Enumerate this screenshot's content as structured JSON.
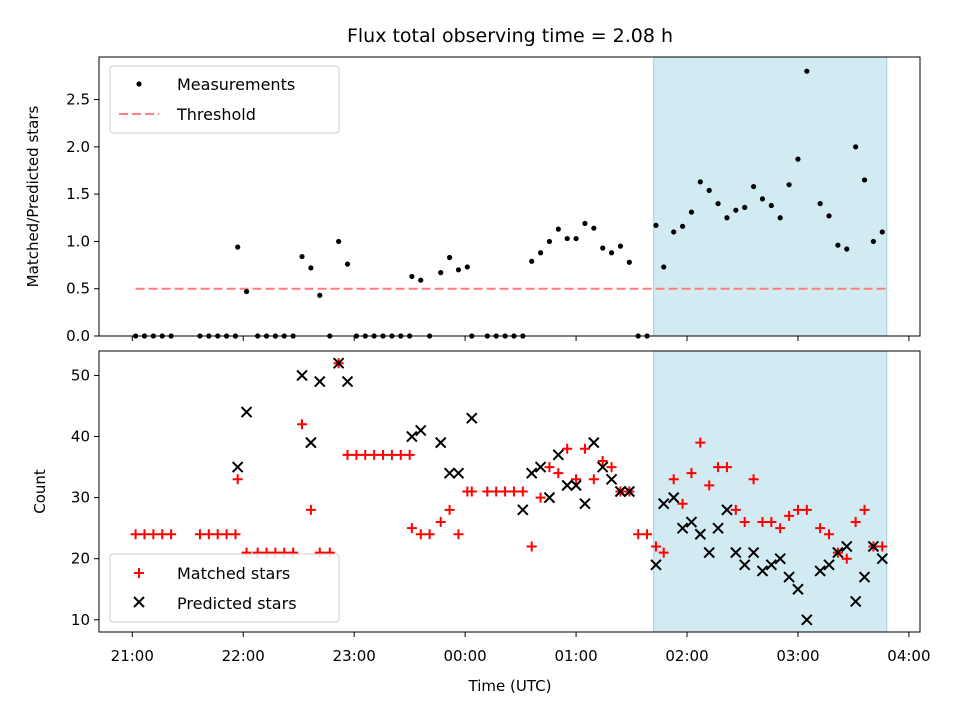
{
  "chart_data": [
    {
      "type": "scatter",
      "title": "Flux total observing time = 2.08 h",
      "xlabel": "",
      "ylabel": "Matched/Predicted stars",
      "xlim": [
        20.7,
        28.1
      ],
      "ylim": [
        0.0,
        2.95
      ],
      "yticks": [
        "0.0",
        "0.5",
        "1.0",
        "1.5",
        "2.0",
        "2.5"
      ],
      "shaded_interval": [
        25.7,
        27.8
      ],
      "shade_color": "#add8e6",
      "legend_position": "top-left",
      "series": [
        {
          "name": "Measurements",
          "marker": "dot",
          "color": "#000000",
          "x": [
            21.03,
            21.11,
            21.19,
            21.27,
            21.35,
            21.61,
            21.69,
            21.77,
            21.85,
            21.93,
            21.95,
            22.03,
            22.13,
            22.21,
            22.29,
            22.37,
            22.45,
            22.53,
            22.61,
            22.69,
            22.78,
            22.86,
            22.94,
            23.02,
            23.1,
            23.18,
            23.26,
            23.34,
            23.42,
            23.5,
            23.52,
            23.6,
            23.68,
            23.78,
            23.86,
            23.94,
            24.02,
            24.06,
            24.2,
            24.28,
            24.36,
            24.44,
            24.52,
            24.6,
            24.68,
            24.76,
            24.84,
            24.92,
            25.0,
            25.08,
            25.16,
            25.24,
            25.32,
            25.4,
            25.48,
            25.56,
            25.64,
            25.72,
            25.79,
            25.88,
            25.96,
            26.04,
            26.12,
            26.2,
            26.28,
            26.36,
            26.44,
            26.52,
            26.6,
            26.68,
            26.76,
            26.84,
            26.92,
            27.0,
            27.08,
            27.2,
            27.28,
            27.36,
            27.44,
            27.52,
            27.6,
            27.68,
            27.76
          ],
          "y": [
            0.0,
            0.0,
            0.0,
            0.0,
            0.0,
            0.0,
            0.0,
            0.0,
            0.0,
            0.0,
            0.94,
            0.47,
            0.0,
            0.0,
            0.0,
            0.0,
            0.0,
            0.84,
            0.72,
            0.43,
            0.0,
            1.0,
            0.76,
            0.0,
            0.0,
            0.0,
            0.0,
            0.0,
            0.0,
            0.0,
            0.63,
            0.59,
            0.0,
            0.67,
            0.83,
            0.7,
            0.73,
            0.0,
            0.0,
            0.0,
            0.0,
            0.0,
            0.0,
            0.79,
            0.88,
            1.0,
            1.13,
            1.03,
            1.03,
            1.19,
            1.14,
            0.93,
            0.88,
            0.95,
            0.78,
            0.0,
            0.0,
            1.17,
            0.73,
            1.1,
            1.16,
            1.31,
            1.63,
            1.54,
            1.4,
            1.25,
            1.33,
            1.36,
            1.58,
            1.45,
            1.38,
            1.25,
            1.6,
            1.87,
            2.8,
            1.4,
            1.27,
            0.96,
            0.92,
            2.0,
            1.65,
            1.0,
            1.1
          ]
        },
        {
          "name": "Threshold",
          "marker": "dashed-line",
          "color": "#ff7f7f",
          "x": [
            21.03,
            27.8
          ],
          "y": [
            0.5,
            0.5
          ]
        }
      ]
    },
    {
      "type": "scatter",
      "title": "",
      "xlabel": "Time (UTC)",
      "ylabel": "Count",
      "xlim": [
        20.7,
        28.1
      ],
      "ylim": [
        8,
        54
      ],
      "yticks": [
        "10",
        "20",
        "30",
        "40",
        "50"
      ],
      "xticks": [
        {
          "value": 21,
          "label": "21:00"
        },
        {
          "value": 22,
          "label": "22:00"
        },
        {
          "value": 23,
          "label": "23:00"
        },
        {
          "value": 24,
          "label": "00:00"
        },
        {
          "value": 25,
          "label": "01:00"
        },
        {
          "value": 26,
          "label": "02:00"
        },
        {
          "value": 27,
          "label": "03:00"
        },
        {
          "value": 28,
          "label": "04:00"
        }
      ],
      "shaded_interval": [
        25.7,
        27.8
      ],
      "shade_color": "#add8e6",
      "legend_position": "bottom-left",
      "series": [
        {
          "name": "Matched stars",
          "marker": "plus",
          "color": "#ff0000",
          "x": [
            21.03,
            21.11,
            21.19,
            21.27,
            21.35,
            21.61,
            21.69,
            21.77,
            21.85,
            21.93,
            21.95,
            22.03,
            22.13,
            22.21,
            22.29,
            22.37,
            22.45,
            22.53,
            22.61,
            22.69,
            22.78,
            22.86,
            22.94,
            23.02,
            23.1,
            23.18,
            23.26,
            23.34,
            23.42,
            23.5,
            23.52,
            23.6,
            23.68,
            23.78,
            23.86,
            23.94,
            24.02,
            24.06,
            24.2,
            24.28,
            24.36,
            24.44,
            24.52,
            24.6,
            24.68,
            24.76,
            24.84,
            24.92,
            25.0,
            25.08,
            25.16,
            25.24,
            25.32,
            25.4,
            25.48,
            25.56,
            25.64,
            25.72,
            25.79,
            25.88,
            25.96,
            26.04,
            26.12,
            26.2,
            26.28,
            26.36,
            26.44,
            26.52,
            26.6,
            26.68,
            26.76,
            26.84,
            26.92,
            27.0,
            27.08,
            27.2,
            27.28,
            27.36,
            27.44,
            27.52,
            27.6,
            27.68,
            27.76
          ],
          "y": [
            24,
            24,
            24,
            24,
            24,
            24,
            24,
            24,
            24,
            24,
            33,
            21,
            21,
            21,
            21,
            21,
            21,
            42,
            28,
            21,
            21,
            52,
            37,
            37,
            37,
            37,
            37,
            37,
            37,
            37,
            25,
            24,
            24,
            26,
            28,
            24,
            31,
            31,
            31,
            31,
            31,
            31,
            31,
            22,
            30,
            35,
            34,
            38,
            33,
            38,
            33,
            36,
            35,
            31,
            31,
            24,
            24,
            22,
            21,
            33,
            29,
            34,
            39,
            32,
            35,
            35,
            28,
            26,
            33,
            26,
            26,
            25,
            27,
            28,
            28,
            25,
            24,
            21,
            20,
            26,
            28,
            22,
            22
          ]
        },
        {
          "name": "Predicted stars",
          "marker": "x",
          "color": "#000000",
          "x": [
            21.95,
            22.03,
            22.53,
            22.61,
            22.69,
            22.86,
            22.94,
            23.52,
            23.6,
            23.78,
            23.86,
            23.94,
            24.06,
            24.52,
            24.6,
            24.68,
            24.76,
            24.84,
            24.92,
            25.0,
            25.08,
            25.16,
            25.24,
            25.32,
            25.4,
            25.48,
            25.72,
            25.79,
            25.88,
            25.96,
            26.04,
            26.12,
            26.2,
            26.28,
            26.36,
            26.44,
            26.52,
            26.6,
            26.68,
            26.76,
            26.84,
            26.92,
            27.0,
            27.08,
            27.2,
            27.28,
            27.36,
            27.44,
            27.52,
            27.6,
            27.68,
            27.76
          ],
          "y": [
            35,
            44,
            50,
            39,
            49,
            52,
            49,
            40,
            41,
            39,
            34,
            34,
            43,
            28,
            34,
            35,
            30,
            37,
            32,
            32,
            29,
            39,
            35,
            33,
            31,
            31,
            19,
            29,
            30,
            25,
            26,
            24,
            21,
            25,
            28,
            21,
            19,
            21,
            18,
            19,
            20,
            17,
            15,
            10,
            18,
            19,
            21,
            22,
            13,
            17,
            22,
            20
          ]
        }
      ]
    }
  ]
}
